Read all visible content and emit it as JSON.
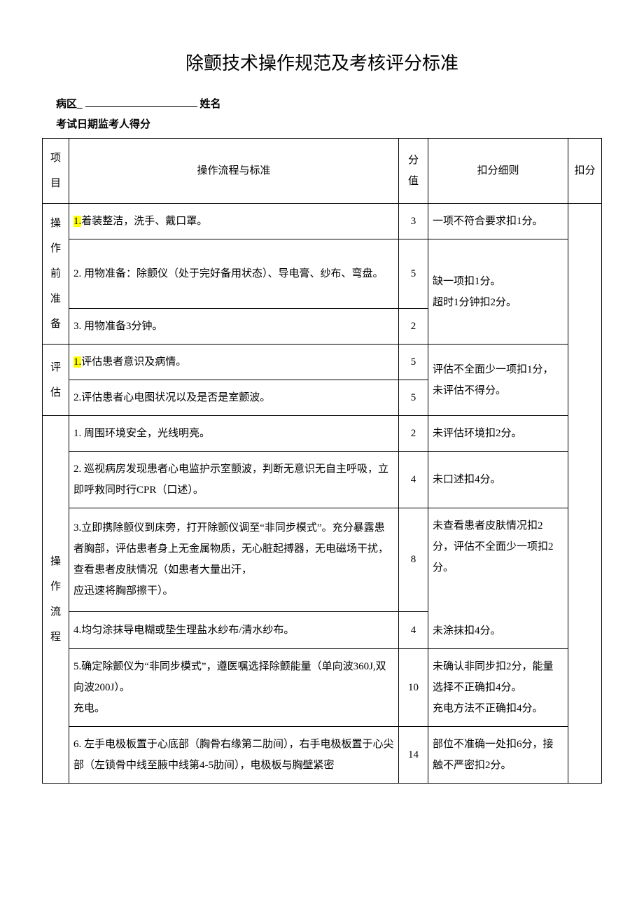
{
  "title": "除颤技术操作规范及考核评分标准",
  "meta": {
    "ward_label": "病区",
    "name_label": "姓名",
    "exam_label": "考试日期监考人得分"
  },
  "headers": {
    "category": "项\n目",
    "procedure": "操作流程与标准",
    "score": "分\n值",
    "deduction": "扣分细则",
    "penalty": "扣分"
  },
  "sections": [
    {
      "category": "操\n作\n前\n准\n备",
      "rows": [
        {
          "hl_prefix": "1.",
          "text": "着装整洁，洗手、戴口罩。",
          "score": "3",
          "deduction": "一项不符合要求扣1分。"
        },
        {
          "text": "2. 用物准备：除颤仪（处于完好备用状态）、导电膏、纱布、弯盘。",
          "score": "5",
          "deduction": "缺一项扣1分。\n超时1分钟扣2分。",
          "ded_rowspan": 2
        },
        {
          "text": "3. 用物准备3分钟。",
          "score": "2"
        }
      ]
    },
    {
      "category": "评\n估",
      "rows": [
        {
          "hl_prefix": "1.",
          "text": "评估患者意识及病情。",
          "score": "5",
          "deduction": "评估不全面少一项扣1分，未评估不得分。",
          "ded_rowspan": 2
        },
        {
          "text": "2.评估患者心电图状况以及是否是室颤波。",
          "score": "5"
        }
      ]
    },
    {
      "category": "操\n作\n流\n程",
      "rows": [
        {
          "text": "1. 周围环境安全，光线明亮。",
          "score": "2",
          "deduction": "未评估环境扣2分。"
        },
        {
          "text": "2. 巡视病房发现患者心电监护示室颤波，判断无意识无自主呼吸，立即呼救同时行CPR（口述）。",
          "score": "4",
          "deduction": "未口述扣4分。"
        },
        {
          "text": "3.立即携除颤仪到床旁，打开除颤仪调至“非同步模式”。充分暴露患者胸部，评估患者身上无金属物质，无心脏起搏器，无电磁场干扰，查看患者皮肤情况（如患者大量出汗，\n应迅速将胸部擦干）。",
          "score": "8",
          "deduction": "未查看患者皮肤情况扣2分，评估不全面少一项扣2分。\n\n\n未涂抹扣4分。",
          "ded_rowspan": 2
        },
        {
          "text": "4.均匀涂抹导电糊或垫生理盐水纱布/清水纱布。",
          "score": "4"
        },
        {
          "text": "5.确定除颤仪为“非同步模式”，遵医嘱选择除颤能量（单向波360J,双向波200J）。\n充电。",
          "score": "10",
          "deduction": "未确认非同步扣2分，能量选择不正确扣4分。\n充电方法不正确扣4分。"
        },
        {
          "text": "6. 左手电极板置于心底部（胸骨右缘第二肋间），右手电极板置于心尖部（左锁骨中线至腋中线第4-5肋间），电极板与胸壁紧密",
          "score": "14",
          "deduction": "部位不准确一处扣6分，接触不严密扣2分。"
        }
      ]
    }
  ]
}
